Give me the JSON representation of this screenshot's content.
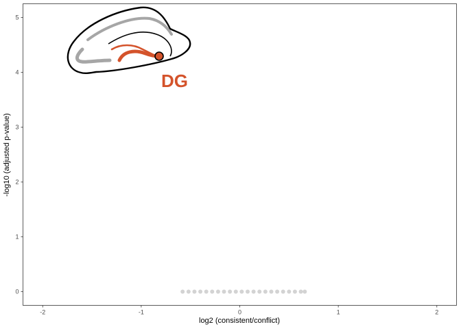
{
  "chart_data": {
    "type": "scatter",
    "xlabel": "log2 (consistent/conflict)",
    "ylabel": "-log10 (adjusted p-value)",
    "xlim": [
      -2.2,
      2.2
    ],
    "ylim": [
      -0.25,
      5.25
    ],
    "x_ticks": [
      -2,
      -1,
      0,
      1,
      2
    ],
    "x_tick_labels": [
      "-2",
      "-1",
      "0",
      "1",
      "2"
    ],
    "y_ticks": [
      0,
      1,
      2,
      3,
      4,
      5
    ],
    "y_tick_labels": [
      "0",
      "1",
      "2",
      "3",
      "4",
      "5"
    ],
    "grid": false,
    "series": [
      {
        "color": "#d3d3d3",
        "points": [
          {
            "x": -0.58,
            "y": 0
          },
          {
            "x": -0.52,
            "y": 0
          },
          {
            "x": -0.46,
            "y": 0
          },
          {
            "x": -0.4,
            "y": 0
          },
          {
            "x": -0.34,
            "y": 0
          },
          {
            "x": -0.28,
            "y": 0
          },
          {
            "x": -0.22,
            "y": 0
          },
          {
            "x": -0.16,
            "y": 0
          },
          {
            "x": -0.1,
            "y": 0
          },
          {
            "x": -0.04,
            "y": 0
          },
          {
            "x": 0.02,
            "y": 0
          },
          {
            "x": 0.08,
            "y": 0
          },
          {
            "x": 0.14,
            "y": 0
          },
          {
            "x": 0.2,
            "y": 0
          },
          {
            "x": 0.26,
            "y": 0
          },
          {
            "x": 0.32,
            "y": 0
          },
          {
            "x": 0.38,
            "y": 0
          },
          {
            "x": 0.44,
            "y": 0
          },
          {
            "x": 0.5,
            "y": 0
          },
          {
            "x": 0.56,
            "y": 0
          },
          {
            "x": 0.62,
            "y": 0
          },
          {
            "x": 0.66,
            "y": 0
          }
        ]
      }
    ]
  },
  "inset": {
    "label": "DG",
    "highlight_color": "#d4532b",
    "neutral_color": "#a6a6a6",
    "outline_color": "#000000"
  }
}
